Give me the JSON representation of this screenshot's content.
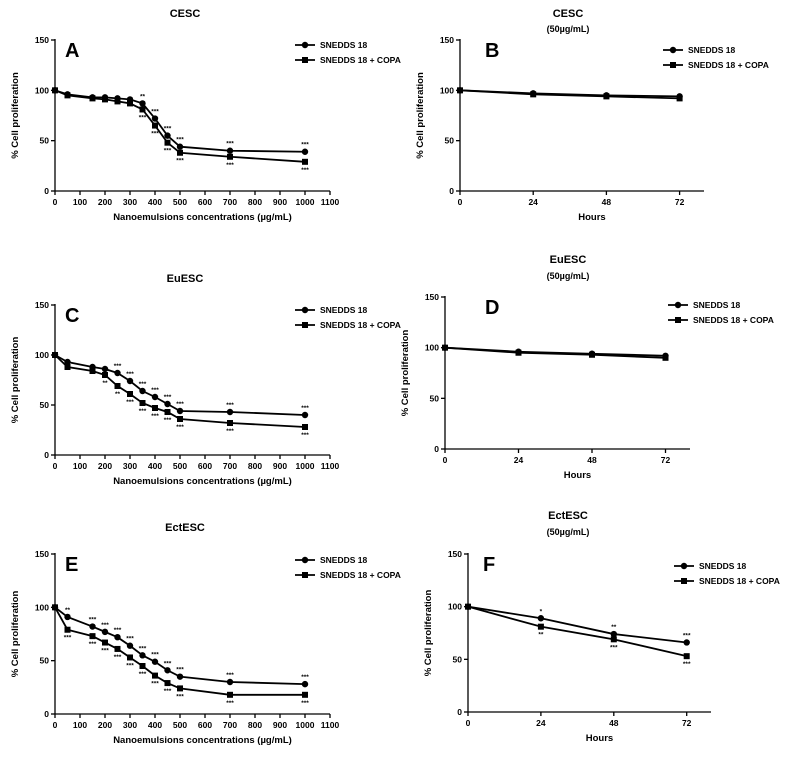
{
  "chart_data": [
    {
      "type": "line",
      "letter": "A",
      "title": "CESC",
      "subtitle": "",
      "xlabel": "Nanoemulsions concentrations (µg/mL)",
      "ylabel": "% Cell proliferation",
      "xlim": [
        0,
        1100
      ],
      "ylim": [
        0,
        150
      ],
      "xticks": [
        0,
        100,
        200,
        300,
        400,
        500,
        600,
        700,
        800,
        900,
        1000,
        1100
      ],
      "yticks": [
        0,
        50,
        100,
        150
      ],
      "series": [
        {
          "name": "SNEDDS 18",
          "marker": "circle",
          "x": [
            0,
            50,
            150,
            200,
            250,
            300,
            350,
            400,
            450,
            500,
            700,
            1000
          ],
          "y": [
            100,
            96,
            93,
            93,
            92,
            91,
            87,
            72,
            55,
            44,
            40,
            39
          ],
          "sig": [
            "",
            "",
            "",
            "",
            "",
            "",
            "**",
            "***",
            "***",
            "***",
            "***",
            "***"
          ]
        },
        {
          "name": "SNEDDS 18 + COPA",
          "marker": "square",
          "x": [
            0,
            50,
            150,
            200,
            250,
            300,
            350,
            400,
            450,
            500,
            700,
            1000
          ],
          "y": [
            100,
            95,
            92,
            91,
            89,
            87,
            81,
            65,
            48,
            38,
            34,
            29
          ],
          "sig": [
            "",
            "",
            "",
            "",
            "",
            "",
            "***",
            "***",
            "***",
            "***",
            "***",
            "***"
          ]
        }
      ]
    },
    {
      "type": "line",
      "letter": "B",
      "title": "CESC",
      "subtitle": "(50µg/mL)",
      "xlabel": "Hours",
      "ylabel": "% Cell proliferation",
      "xlim": [
        0,
        80
      ],
      "ylim": [
        0,
        150
      ],
      "xticks": [
        0,
        24,
        48,
        72
      ],
      "yticks": [
        0,
        50,
        100,
        150
      ],
      "series": [
        {
          "name": "SNEDDS 18",
          "marker": "circle",
          "x": [
            0,
            24,
            48,
            72
          ],
          "y": [
            100,
            97,
            95,
            94
          ],
          "sig": [
            "",
            "",
            "",
            ""
          ]
        },
        {
          "name": "SNEDDS 18 + COPA",
          "marker": "square",
          "x": [
            0,
            24,
            48,
            72
          ],
          "y": [
            100,
            96,
            94,
            92
          ],
          "sig": [
            "",
            "",
            "",
            ""
          ]
        }
      ]
    },
    {
      "type": "line",
      "letter": "C",
      "title": "EuESC",
      "subtitle": "",
      "xlabel": "Nanoemulsions concentrations (µg/mL)",
      "ylabel": "% Cell proliferation",
      "xlim": [
        0,
        1100
      ],
      "ylim": [
        0,
        150
      ],
      "xticks": [
        0,
        100,
        200,
        300,
        400,
        500,
        600,
        700,
        800,
        900,
        1000,
        1100
      ],
      "yticks": [
        0,
        50,
        100,
        150
      ],
      "series": [
        {
          "name": "SNEDDS 18",
          "marker": "circle",
          "x": [
            0,
            50,
            150,
            200,
            250,
            300,
            350,
            400,
            450,
            500,
            700,
            1000
          ],
          "y": [
            100,
            93,
            88,
            86,
            82,
            74,
            64,
            58,
            51,
            44,
            43,
            40
          ],
          "sig": [
            "",
            "",
            "",
            "",
            "***",
            "***",
            "***",
            "***",
            "***",
            "***",
            "***",
            "***"
          ]
        },
        {
          "name": "SNEDDS 18 + COPA",
          "marker": "square",
          "x": [
            0,
            50,
            150,
            200,
            250,
            300,
            350,
            400,
            450,
            500,
            700,
            1000
          ],
          "y": [
            100,
            88,
            84,
            80,
            69,
            61,
            52,
            47,
            43,
            36,
            32,
            28
          ],
          "sig": [
            "",
            "",
            "",
            "**",
            "**",
            "***",
            "***",
            "***",
            "***",
            "***",
            "***",
            "***"
          ]
        }
      ]
    },
    {
      "type": "line",
      "letter": "D",
      "title": "EuESC",
      "subtitle": "(50µg/mL)",
      "xlabel": "Hours",
      "ylabel": "% Cell proliferation",
      "xlim": [
        0,
        80
      ],
      "ylim": [
        0,
        150
      ],
      "xticks": [
        0,
        24,
        48,
        72
      ],
      "yticks": [
        0,
        50,
        100,
        150
      ],
      "series": [
        {
          "name": "SNEDDS 18",
          "marker": "circle",
          "x": [
            0,
            24,
            48,
            72
          ],
          "y": [
            100,
            96,
            94,
            92
          ],
          "sig": [
            "",
            "",
            "",
            ""
          ]
        },
        {
          "name": "SNEDDS 18 + COPA",
          "marker": "square",
          "x": [
            0,
            24,
            48,
            72
          ],
          "y": [
            100,
            95,
            93,
            90
          ],
          "sig": [
            "",
            "",
            "",
            ""
          ]
        }
      ]
    },
    {
      "type": "line",
      "letter": "E",
      "title": "EctESC",
      "subtitle": "",
      "xlabel": "Nanoemulsions concentrations (µg/mL)",
      "ylabel": "% Cell proliferation",
      "xlim": [
        0,
        1100
      ],
      "ylim": [
        0,
        150
      ],
      "xticks": [
        0,
        100,
        200,
        300,
        400,
        500,
        600,
        700,
        800,
        900,
        1000,
        1100
      ],
      "yticks": [
        0,
        50,
        100,
        150
      ],
      "series": [
        {
          "name": "SNEDDS 18",
          "marker": "circle",
          "x": [
            0,
            50,
            150,
            200,
            250,
            300,
            350,
            400,
            450,
            500,
            700,
            1000
          ],
          "y": [
            100,
            91,
            82,
            77,
            72,
            64,
            55,
            49,
            41,
            35,
            30,
            28
          ],
          "sig": [
            "",
            "**",
            "***",
            "***",
            "***",
            "***",
            "***",
            "***",
            "***",
            "***",
            "***",
            "***"
          ]
        },
        {
          "name": "SNEDDS 18 + COPA",
          "marker": "square",
          "x": [
            0,
            50,
            150,
            200,
            250,
            300,
            350,
            400,
            450,
            500,
            700,
            1000
          ],
          "y": [
            100,
            79,
            73,
            67,
            61,
            53,
            45,
            36,
            29,
            24,
            18,
            18
          ],
          "sig": [
            "",
            "***",
            "***",
            "***",
            "***",
            "***",
            "***",
            "***",
            "***",
            "***",
            "***",
            "***"
          ]
        }
      ]
    },
    {
      "type": "line",
      "letter": "F",
      "title": "EctESC",
      "subtitle": "(50µg/mL)",
      "xlabel": "Hours",
      "ylabel": "% Cell proliferation",
      "xlim": [
        0,
        80
      ],
      "ylim": [
        0,
        150
      ],
      "xticks": [
        0,
        24,
        48,
        72
      ],
      "yticks": [
        0,
        50,
        100,
        150
      ],
      "series": [
        {
          "name": "SNEDDS 18",
          "marker": "circle",
          "x": [
            0,
            24,
            48,
            72
          ],
          "y": [
            100,
            89,
            74,
            66
          ],
          "sig": [
            "",
            "*",
            "**",
            "***"
          ]
        },
        {
          "name": "SNEDDS 18 + COPA",
          "marker": "square",
          "x": [
            0,
            24,
            48,
            72
          ],
          "y": [
            100,
            81,
            69,
            53
          ],
          "sig": [
            "",
            "**",
            "***",
            "***"
          ]
        }
      ]
    }
  ]
}
